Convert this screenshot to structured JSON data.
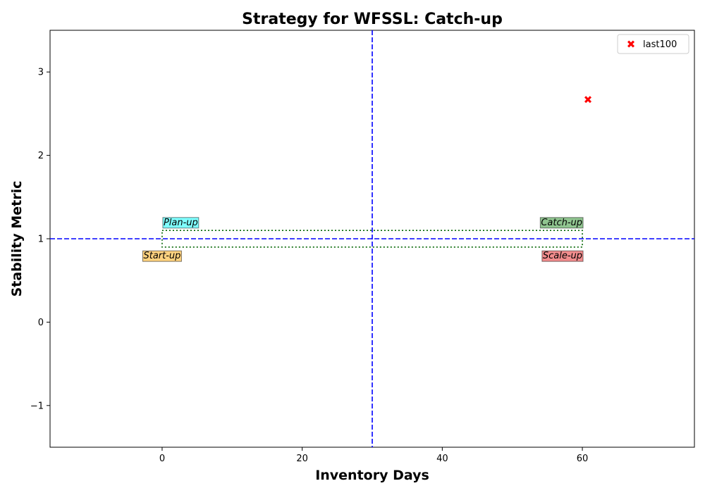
{
  "chart_data": {
    "type": "scatter",
    "title": "Strategy for WFSSL: Catch-up",
    "xlabel": "Inventory Days",
    "ylabel": "Stability Metric",
    "xlim": [
      -16,
      76
    ],
    "ylim": [
      -1.5,
      3.5
    ],
    "xticks": [
      0,
      20,
      40,
      60
    ],
    "yticks": [
      -1,
      0,
      1,
      2,
      3
    ],
    "grid": false,
    "legend_position": "top-right",
    "series": [
      {
        "name": "last100",
        "marker": "X",
        "color": "#ff0000",
        "points": [
          {
            "x": 60.8,
            "y": 2.67
          }
        ]
      }
    ],
    "reference_lines": [
      {
        "orientation": "vertical",
        "value": 30,
        "style": "dashed",
        "color": "#0000ff"
      },
      {
        "orientation": "horizontal",
        "value": 1,
        "style": "dashed",
        "color": "#0000ff"
      }
    ],
    "region_box": {
      "x": [
        0,
        60
      ],
      "y": [
        0.9,
        1.1
      ],
      "style": "dotted",
      "color": "#006400"
    },
    "quadrant_labels": [
      {
        "text": "Plan-up",
        "x": 0,
        "y": 1.2,
        "color": "#00ffff",
        "anchor": "start"
      },
      {
        "text": "Catch-up",
        "x": 60,
        "y": 1.2,
        "color": "#228b22",
        "anchor": "end"
      },
      {
        "text": "Start-up",
        "x": 0,
        "y": 0.8,
        "color": "#ffa500",
        "anchor": "middle"
      },
      {
        "text": "Scale-up",
        "x": 60,
        "y": 0.8,
        "color": "#e41a1c",
        "anchor": "end"
      }
    ]
  }
}
